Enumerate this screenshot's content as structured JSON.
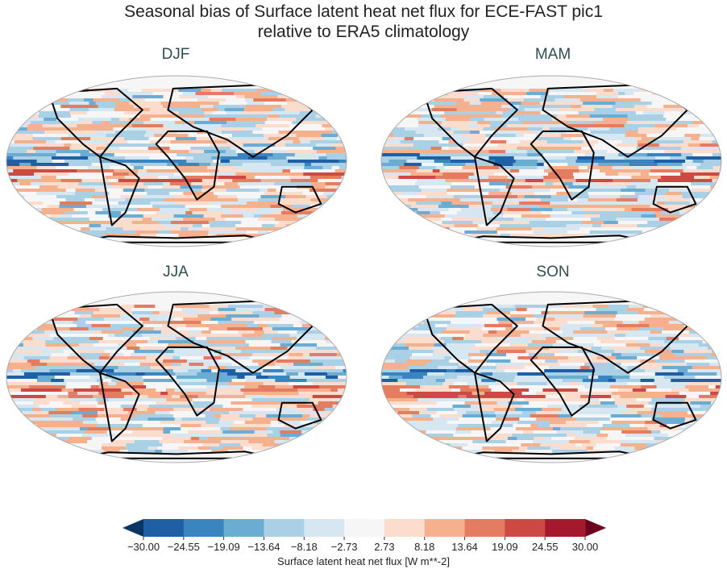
{
  "title_line1": "Seasonal bias of Surface latent heat net flux for ECE-FAST pic1",
  "title_line2": "relative to ERA5 climatology",
  "panels": [
    {
      "label": "DJF"
    },
    {
      "label": "MAM"
    },
    {
      "label": "JJA"
    },
    {
      "label": "SON"
    }
  ],
  "colorbar": {
    "label": "Surface latent heat net flux [W m**-2]",
    "ticks": [
      "−30.00",
      "−24.55",
      "−19.09",
      "−13.64",
      "−8.18",
      "−2.73",
      "2.73",
      "8.18",
      "13.64",
      "19.09",
      "24.55",
      "30.00"
    ],
    "colors": [
      "#1f5fa6",
      "#3a84c0",
      "#6aacd2",
      "#a9d0e4",
      "#d6e7f1",
      "#f6f6f6",
      "#fbdccd",
      "#f5b08e",
      "#e47c62",
      "#cc4a43",
      "#a5192d"
    ],
    "under_color": "#0b3565",
    "over_color": "#6a0220",
    "extend": "both"
  },
  "projection": "Robinson"
}
